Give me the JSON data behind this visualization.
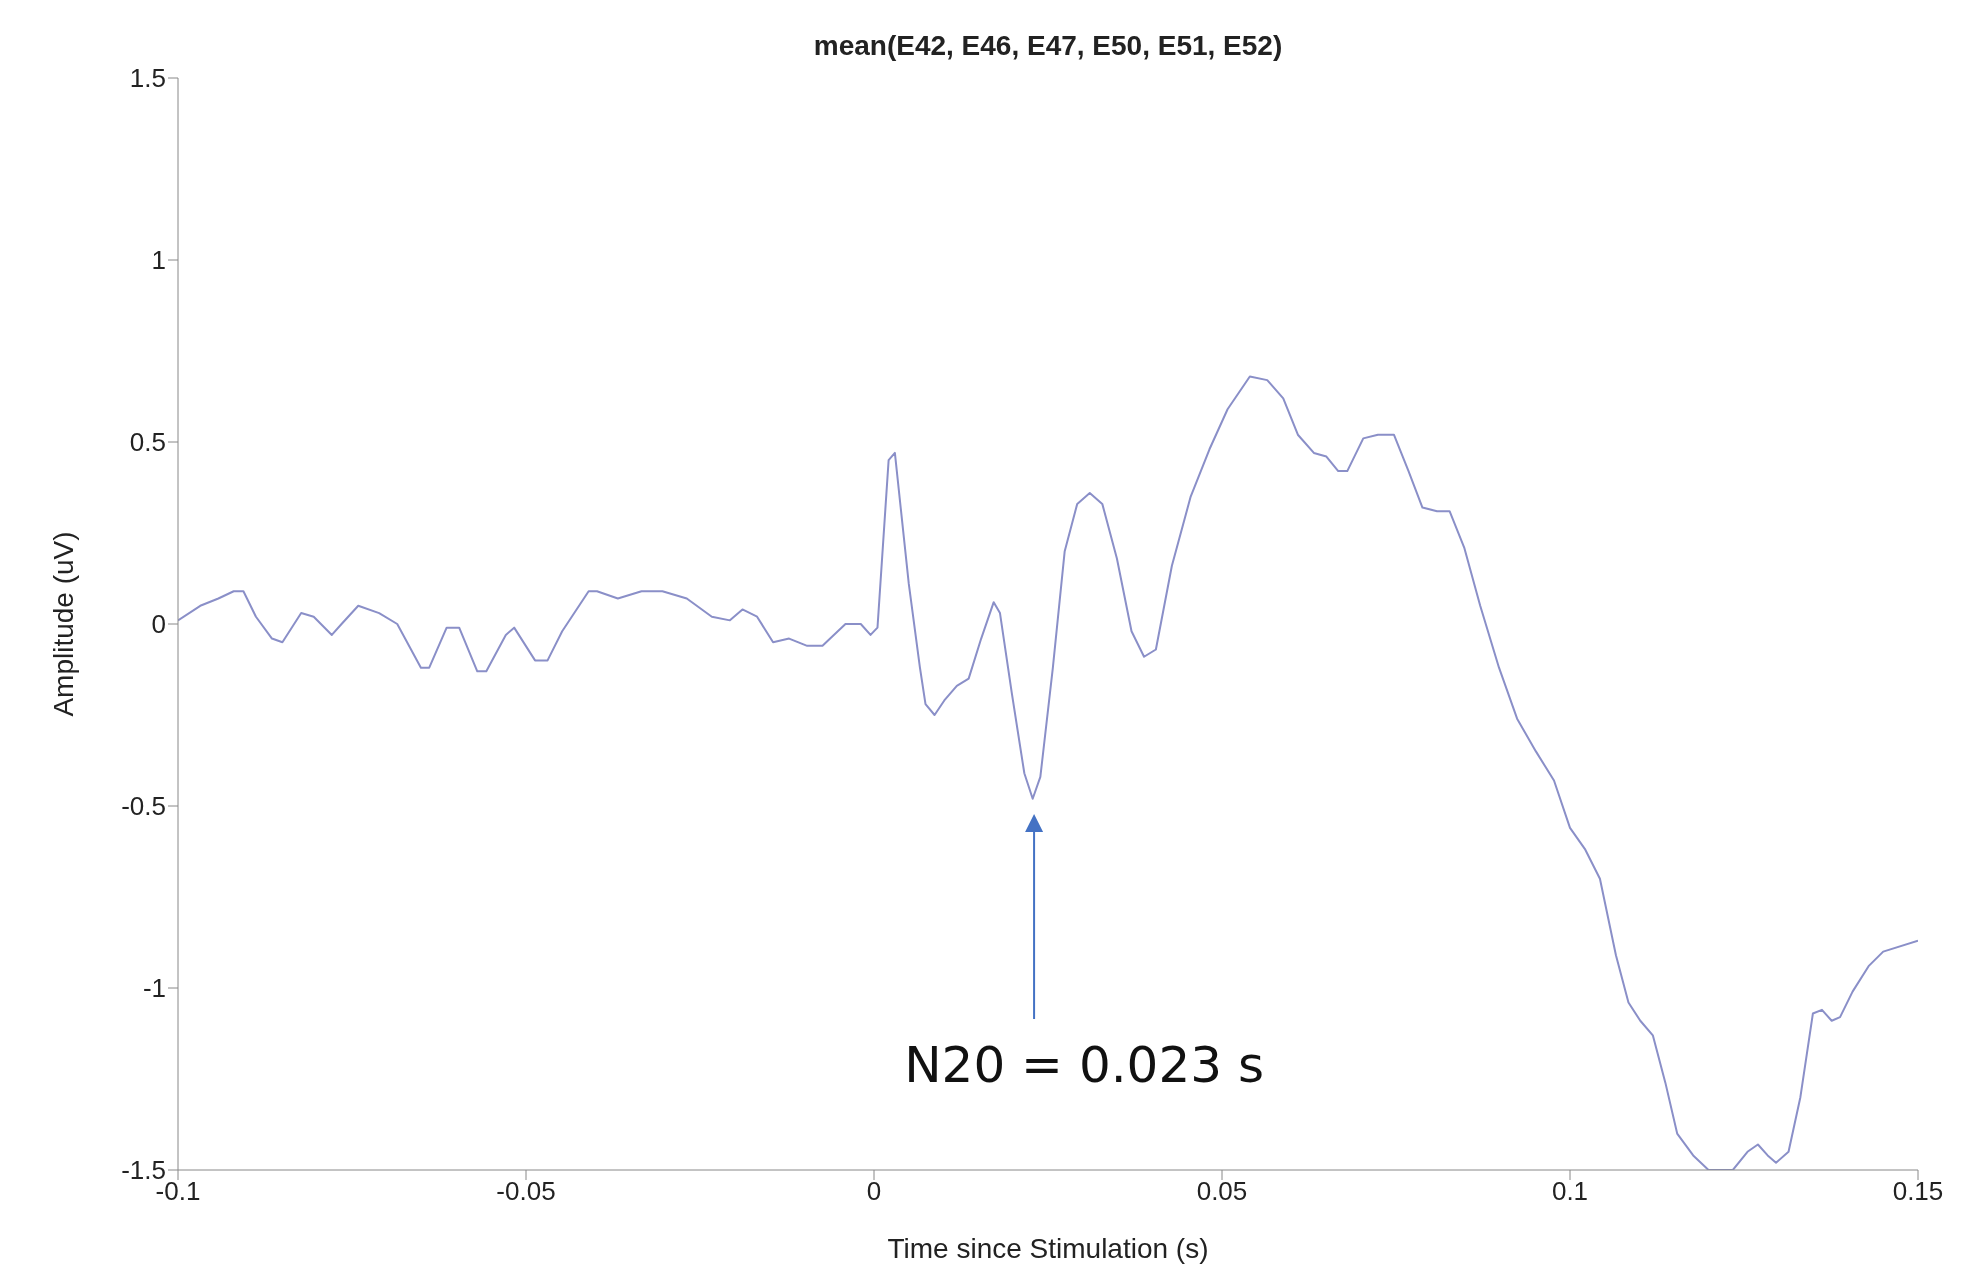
{
  "chart_data": {
    "type": "line",
    "title": "mean(E42, E46, E47, E50, E51, E52)",
    "xlabel": "Time since Stimulation (s)",
    "ylabel": "Amplitude (uV)",
    "xlim": [
      -0.1,
      0.15
    ],
    "xticks": [
      -0.1,
      -0.05,
      0,
      0.05,
      0.1,
      0.15
    ],
    "ylim": [
      -1.5,
      1.5
    ],
    "yticks": [
      -1.5,
      -1,
      -0.5,
      0,
      0.5,
      1,
      1.5
    ],
    "grid": false,
    "legend": false,
    "marker": "none",
    "line_style": "solid",
    "annotations": [
      "N20 = 0.023 s"
    ],
    "series": [
      {
        "color": "#8a8fc8",
        "x": [
          -0.1,
          -0.0968,
          -0.0942,
          -0.092,
          -0.0906,
          -0.0888,
          -0.0865,
          -0.085,
          -0.0823,
          -0.0805,
          -0.0779,
          -0.0765,
          -0.0741,
          -0.0711,
          -0.0685,
          -0.0651,
          -0.0639,
          -0.0614,
          -0.0596,
          -0.057,
          -0.0557,
          -0.0529,
          -0.0517,
          -0.0487,
          -0.0469,
          -0.0448,
          -0.041,
          -0.0398,
          -0.0368,
          -0.0334,
          -0.0304,
          -0.0269,
          -0.0233,
          -0.0207,
          -0.0189,
          -0.0168,
          -0.0145,
          -0.0122,
          -0.0096,
          -0.0074,
          -0.0041,
          -0.0019,
          -0.0005,
          0.0005,
          0.0021,
          0.003,
          0.005,
          0.0066,
          0.0074,
          0.0087,
          0.0101,
          0.0119,
          0.0136,
          0.0154,
          0.0172,
          0.0181,
          0.0198,
          0.0216,
          0.0228,
          0.0239,
          0.0257,
          0.0274,
          0.0292,
          0.031,
          0.0328,
          0.0349,
          0.037,
          0.0388,
          0.0405,
          0.0428,
          0.0455,
          0.0482,
          0.0508,
          0.054,
          0.0565,
          0.0588,
          0.0609,
          0.0632,
          0.065,
          0.0667,
          0.068,
          0.0703,
          0.0724,
          0.0747,
          0.0768,
          0.0788,
          0.0809,
          0.0827,
          0.0848,
          0.0871,
          0.0898,
          0.0924,
          0.0951,
          0.0977,
          0.1,
          0.1022,
          0.1043,
          0.1066,
          0.1084,
          0.1101,
          0.1119,
          0.1137,
          0.1154,
          0.1177,
          0.1199,
          0.1213,
          0.1234,
          0.1255,
          0.127,
          0.1284,
          0.1296,
          0.1314,
          0.1331,
          0.1349,
          0.1362,
          0.1376,
          0.1388,
          0.1406,
          0.1429,
          0.145,
          0.15
        ],
        "values": [
          0.01,
          0.05,
          0.07,
          0.09,
          0.09,
          0.02,
          -0.04,
          -0.05,
          0.03,
          0.02,
          -0.03,
          0,
          0.05,
          0.03,
          0,
          -0.12,
          -0.12,
          -0.01,
          -0.01,
          -0.13,
          -0.13,
          -0.03,
          -0.01,
          -0.1,
          -0.1,
          -0.02,
          0.09,
          0.09,
          0.07,
          0.09,
          0.09,
          0.07,
          0.02,
          0.01,
          0.04,
          0.02,
          -0.05,
          -0.04,
          -0.06,
          -0.06,
          0,
          0,
          -0.03,
          -0.01,
          0.45,
          0.47,
          0.11,
          -0.12,
          -0.22,
          -0.25,
          -0.21,
          -0.17,
          -0.15,
          -0.04,
          0.06,
          0.03,
          -0.19,
          -0.41,
          -0.48,
          -0.42,
          -0.12,
          0.2,
          0.33,
          0.36,
          0.33,
          0.18,
          -0.02,
          -0.09,
          -0.07,
          0.16,
          0.35,
          0.48,
          0.59,
          0.68,
          0.67,
          0.62,
          0.52,
          0.47,
          0.46,
          0.42,
          0.42,
          0.51,
          0.52,
          0.52,
          0.42,
          0.32,
          0.31,
          0.31,
          0.21,
          0.05,
          -0.12,
          -0.26,
          -0.35,
          -0.43,
          -0.56,
          -0.62,
          -0.7,
          -0.91,
          -1.04,
          -1.09,
          -1.13,
          -1.26,
          -1.4,
          -1.46,
          -1.5,
          -1.5,
          -1.5,
          -1.45,
          -1.43,
          -1.46,
          -1.48,
          -1.45,
          -1.3,
          -1.07,
          -1.06,
          -1.09,
          -1.08,
          -1.01,
          -0.94,
          -0.9,
          -0.87
        ]
      }
    ]
  }
}
